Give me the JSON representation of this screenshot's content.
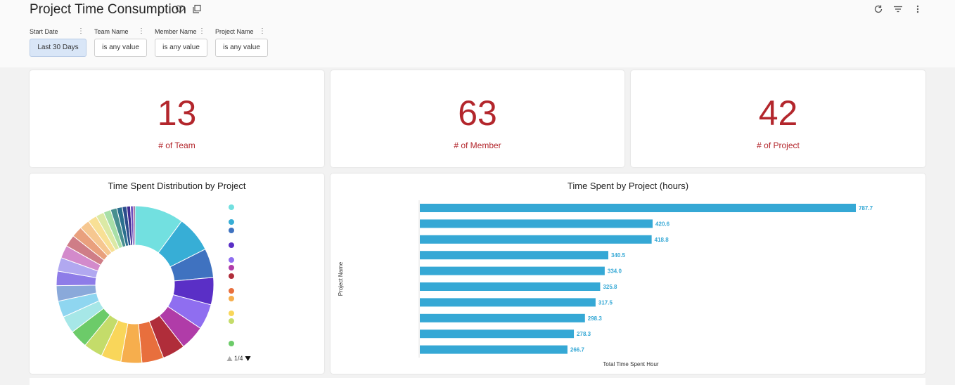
{
  "header": {
    "title": "Project Time Consumption"
  },
  "filters": [
    {
      "label": "Start Date",
      "value": "Last 30 Days"
    },
    {
      "label": "Team Name",
      "value": "is any value"
    },
    {
      "label": "Member Name",
      "value": "is any value"
    },
    {
      "label": "Project Name",
      "value": "is any value"
    }
  ],
  "kpis": [
    {
      "value": "13",
      "label": "# of Team"
    },
    {
      "value": "63",
      "label": "# of Member"
    },
    {
      "value": "42",
      "label": "# of Project"
    }
  ],
  "colors": {
    "accent_red": "#b3262c",
    "bar_blue": "#35a8d5",
    "filter_active": "#d9e6f7"
  },
  "pie": {
    "title": "Time Spent Distribution by Project",
    "pager": "1/4",
    "slice_colors": [
      "#72e0e0",
      "#37aed6",
      "#3f72c0",
      "#5a2fc6",
      "#8f6ef0",
      "#b03ca8",
      "#b02d3a",
      "#e86f3d",
      "#f6ae4d",
      "#f9d65a",
      "#c4dc6a",
      "#6ccb69",
      "#a6e7e7",
      "#8fd6f0",
      "#8aa9da",
      "#8e7ce8",
      "#b1a8f0",
      "#d38acb",
      "#cf7d87",
      "#e9a07d",
      "#f6c790",
      "#f8e095",
      "#dbe9a5",
      "#a8dfa7",
      "#48908f",
      "#2a6f8e",
      "#2b4d8c",
      "#3f2b91",
      "#6a51c0",
      "#7a2c77"
    ],
    "legend_colors": [
      "#72e0e0",
      "#37aed6",
      "#3f72c0",
      "#5a2fc6",
      "#8f6ef0",
      "#b03ca8",
      "#b02d3a",
      "#e86f3d",
      "#f6ae4d",
      "#f9d65a",
      "#c4dc6a",
      "#6ccb69"
    ]
  },
  "chart_data": {
    "type": "bar",
    "title": "Time Spent by Project (hours)",
    "xlabel": "Total Time Spent Hour",
    "ylabel": "Project Name",
    "categories": [
      "",
      "",
      "",
      "",
      "",
      "",
      "",
      "",
      "",
      ""
    ],
    "values": [
      787.7,
      420.6,
      418.8,
      340.5,
      334.0,
      325.8,
      317.5,
      298.3,
      278.3,
      266.7
    ],
    "value_labels": [
      "787.7",
      "420.6",
      "418.8",
      "340.5",
      "334.0",
      "325.8",
      "317.5",
      "298.3",
      "278.3",
      "266.7"
    ],
    "xlim": [
      0,
      800
    ],
    "orientation": "horizontal"
  }
}
